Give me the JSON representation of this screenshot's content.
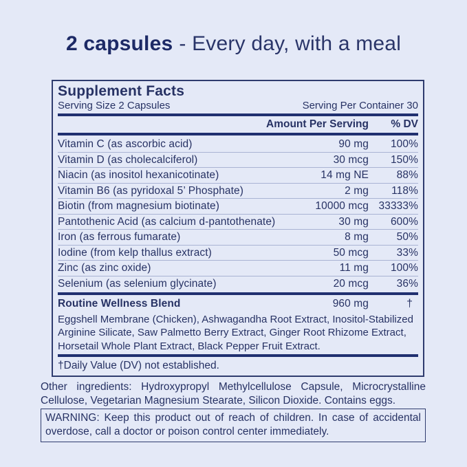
{
  "colors": {
    "background": "#e4e9f7",
    "ink": "#273264",
    "headline_ink": "#1d2a66",
    "bar_navy": "#203070",
    "thin_rule": "#a9b3d3",
    "box_border": "#2e3b6e"
  },
  "headline": {
    "dose": "2 capsules",
    "rest": "- Every day, with a meal"
  },
  "facts": {
    "title": "Supplement Facts",
    "serving_size": "Serving Size 2 Capsules",
    "servings_per_container": "Serving Per Container 30",
    "col_amount": "Amount Per Serving",
    "col_dv": "% DV",
    "rows": [
      {
        "name": "Vitamin C (as ascorbic acid)",
        "amount": "90 mg",
        "dv": "100%"
      },
      {
        "name": "Vitamin D (as cholecalciferol)",
        "amount": "30 mcg",
        "dv": "150%"
      },
      {
        "name": "Niacin (as inositol hexanicotinate)",
        "amount": "14 mg NE",
        "dv": "88%"
      },
      {
        "name": "Vitamin B6 (as pyridoxal 5’ Phosphate)",
        "amount": "2 mg",
        "dv": "118%"
      },
      {
        "name": "Biotin (from magnesium biotinate)",
        "amount": "10000 mcg",
        "dv": "33333%"
      },
      {
        "name": "Pantothenic Acid (as calcium d-pantothenate)",
        "amount": "30 mg",
        "dv": "600%"
      },
      {
        "name": "Iron (as ferrous fumarate)",
        "amount": "8 mg",
        "dv": "50%"
      },
      {
        "name": "Iodine (from kelp thallus extract)",
        "amount": "50 mcg",
        "dv": "33%"
      },
      {
        "name": "Zinc (as zinc oxide)",
        "amount": "11 mg",
        "dv": "100%"
      },
      {
        "name": "Selenium (as selenium glycinate)",
        "amount": "20 mcg",
        "dv": "36%"
      }
    ],
    "blend": {
      "name": "Routine Wellness Blend",
      "amount": "960 mg",
      "dv": "†",
      "ingredients": "Eggshell Membrane (Chicken), Ashwagandha Root Extract, Inositol-Stabilized Arginine Silicate, Saw Palmetto Berry Extract, Ginger Root Rhizome Extract, Horsetail Whole Plant Extract, Black Pepper Fruit Extract."
    },
    "footnote": "†Daily Value (DV) not established."
  },
  "other_ingredients": "Other ingredients: Hydroxypropyl Methylcellulose Capsule, Microcrystalline Cellulose, Vegetarian Magnesium Stearate, Silicon Dioxide. Contains eggs.",
  "warning": "WARNING: Keep this product out of reach of children. In case of accidental overdose, call a doctor or poison control center immediately."
}
